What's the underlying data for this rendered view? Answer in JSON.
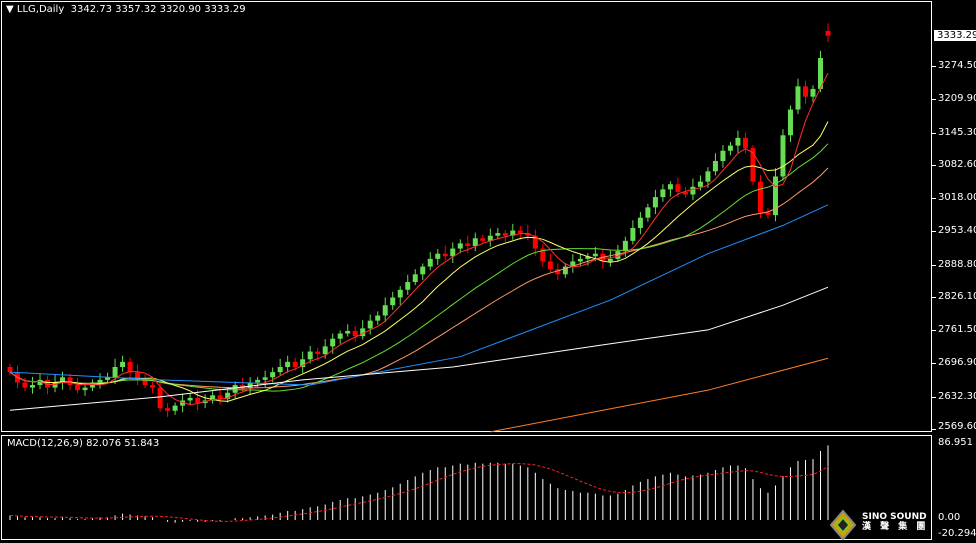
{
  "header": {
    "symbol_title": "LLG,Daily",
    "ohlc": "3342.73 3357.32 3320.90 3333.29"
  },
  "macd_header": {
    "label": "MACD(12,26,9) 82.076 51.843"
  },
  "price_axis": {
    "current": "3333.29",
    "ticks": [
      "3274.50",
      "3209.90",
      "3145.30",
      "3082.60",
      "3018.00",
      "2953.40",
      "2888.80",
      "2826.10",
      "2761.50",
      "2696.90",
      "2632.30",
      "2569.60"
    ]
  },
  "macd_axis": {
    "ticks": [
      "86.951",
      "0.00",
      "-20.294"
    ]
  },
  "logo": {
    "text": "SINO SOUND",
    "subtext": "漢 聲 集 團"
  },
  "colors": {
    "up": "#66dd55",
    "down": "#ff0000",
    "ma5": "#ff3030",
    "ma10": "#ffff66",
    "ma20": "#66dd33",
    "ma30": "#ff9966",
    "ma60": "#1e90ff",
    "ma120": "#ffffff",
    "ma250": "#ff7f27",
    "signal": "#ff2020",
    "hist": "#ffffff"
  },
  "chart_data": {
    "type": "candlestick",
    "symbol": "LLG",
    "timeframe": "Daily",
    "ylim": [
      2569.6,
      3357.32
    ],
    "closes": [
      2680,
      2660,
      2650,
      2655,
      2665,
      2650,
      2660,
      2670,
      2655,
      2645,
      2650,
      2660,
      2665,
      2670,
      2690,
      2700,
      2680,
      2665,
      2655,
      2650,
      2610,
      2605,
      2615,
      2625,
      2630,
      2620,
      2625,
      2635,
      2628,
      2640,
      2655,
      2650,
      2660,
      2665,
      2670,
      2680,
      2690,
      2700,
      2690,
      2705,
      2720,
      2715,
      2730,
      2745,
      2755,
      2760,
      2750,
      2765,
      2780,
      2790,
      2810,
      2825,
      2840,
      2855,
      2870,
      2885,
      2900,
      2910,
      2905,
      2920,
      2930,
      2925,
      2940,
      2935,
      2945,
      2950,
      2945,
      2955,
      2950,
      2945,
      2920,
      2895,
      2880,
      2870,
      2885,
      2895,
      2900,
      2905,
      2910,
      2895,
      2900,
      2915,
      2935,
      2960,
      2980,
      3000,
      3020,
      3035,
      3045,
      3030,
      3025,
      3040,
      3050,
      3070,
      3090,
      3110,
      3120,
      3135,
      3115,
      3050,
      2990,
      2985,
      3060,
      3140,
      3190,
      3235,
      3215,
      3230,
      3290,
      3333.29
    ],
    "last_bar": {
      "open": 3342.73,
      "high": 3357.32,
      "low": 3320.9,
      "close": 3333.29
    },
    "ma_periods": {
      "ma5": 5,
      "ma10": 10,
      "ma20": 20,
      "ma30": 30
    },
    "ma60_samples": [
      [
        0,
        2680
      ],
      [
        20,
        2665
      ],
      [
        40,
        2655
      ],
      [
        60,
        2710
      ],
      [
        80,
        2820
      ],
      [
        93,
        2910
      ],
      [
        103,
        2965
      ],
      [
        109,
        3005
      ]
    ],
    "ma120_samples": [
      [
        0,
        2606
      ],
      [
        20,
        2632
      ],
      [
        39,
        2665
      ],
      [
        59,
        2690
      ],
      [
        79,
        2733
      ],
      [
        93,
        2762
      ],
      [
        103,
        2810
      ],
      [
        109,
        2845
      ]
    ],
    "ma250_samples": [
      [
        64,
        2564
      ],
      [
        79,
        2606
      ],
      [
        93,
        2645
      ],
      [
        109,
        2707
      ]
    ],
    "macd": {
      "ylim": [
        -20.294,
        86.951
      ],
      "values": [
        5,
        4,
        3,
        3,
        3,
        2,
        2,
        3,
        2,
        1,
        1,
        2,
        3,
        3,
        5,
        7,
        6,
        5,
        4,
        3,
        0,
        -2,
        -3,
        -2,
        -1,
        -2,
        -2,
        -1,
        -1,
        0,
        2,
        2,
        3,
        4,
        5,
        6,
        8,
        10,
        10,
        12,
        14,
        15,
        17,
        20,
        22,
        24,
        24,
        26,
        28,
        30,
        33,
        36,
        40,
        44,
        48,
        52,
        55,
        58,
        58,
        60,
        62,
        61,
        63,
        62,
        63,
        63,
        62,
        62,
        60,
        58,
        52,
        45,
        40,
        35,
        33,
        32,
        30,
        30,
        29,
        27,
        27,
        29,
        33,
        38,
        42,
        45,
        48,
        50,
        52,
        50,
        48,
        49,
        50,
        52,
        55,
        58,
        60,
        60,
        57,
        45,
        35,
        30,
        38,
        48,
        58,
        65,
        66,
        67,
        76,
        82.076
      ],
      "signal_period": 9
    }
  }
}
